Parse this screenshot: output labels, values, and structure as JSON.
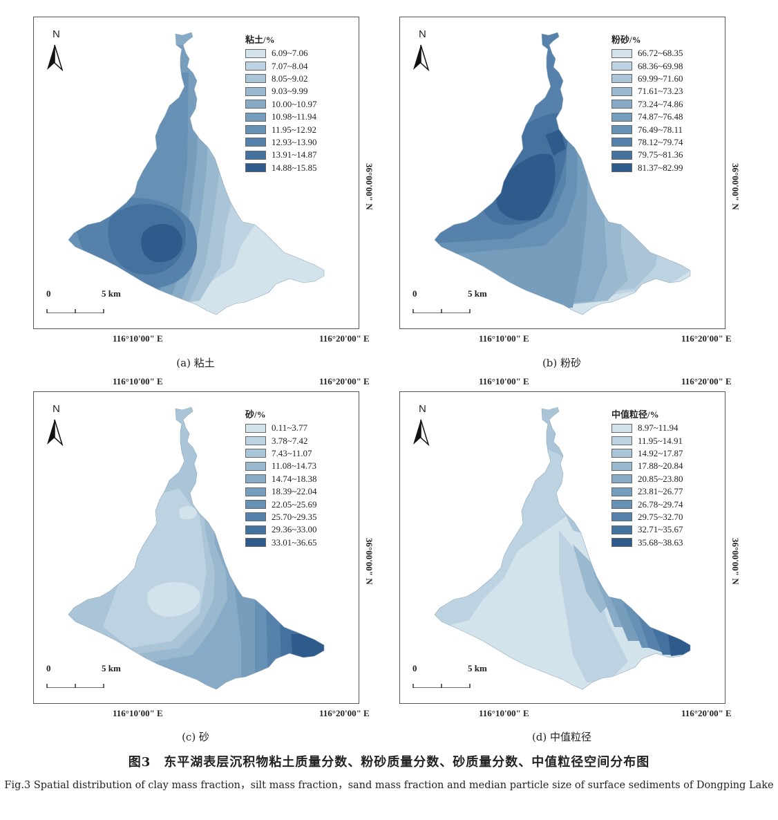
{
  "figure": {
    "title": "图3　东平湖表层沉积物粘土质量分数、粉砂质量分数、砂质量分数、中值粒径空间分布图",
    "subtitle": "Fig.3 Spatial distribution of clay mass fraction，silt mass fraction，sand mass fraction and median particle size of surface sediments of Dongping Lake"
  },
  "axes": {
    "lon1": "116°10'00\" E",
    "lon2": "116°20'00\" E",
    "lat": "36°00'00\" N"
  },
  "north_letter": "N",
  "scale": {
    "zero": "0",
    "five": "5 km"
  },
  "panels": [
    {
      "id": "a",
      "caption": "(a)  粘土",
      "legend_title": "粘土/%",
      "pattern": "clay",
      "classes": [
        "6.09~7.06",
        "7.07~8.04",
        "8.05~9.02",
        "9.03~9.99",
        "10.00~10.97",
        "10.98~11.94",
        "11.95~12.92",
        "12.93~13.90",
        "13.91~14.87",
        "14.88~15.85"
      ]
    },
    {
      "id": "b",
      "caption": "(b)  粉砂",
      "legend_title": "粉砂/%",
      "pattern": "silt",
      "classes": [
        "66.72~68.35",
        "68.36~69.98",
        "69.99~71.60",
        "71.61~73.23",
        "73.24~74.86",
        "74.87~76.48",
        "76.49~78.11",
        "78.12~79.74",
        "79.75~81.36",
        "81.37~82.99"
      ]
    },
    {
      "id": "c",
      "caption": "(c)  砂",
      "legend_title": "砂/%",
      "pattern": "sand",
      "classes": [
        "0.11~3.77",
        "3.78~7.42",
        "7.43~11.07",
        "11.08~14.73",
        "14.74~18.38",
        "18.39~22.04",
        "22.05~25.69",
        "25.70~29.35",
        "29.36~33.00",
        "33.01~36.65"
      ]
    },
    {
      "id": "d",
      "caption": "(d)  中值粒径",
      "legend_title": "中值粒径/%",
      "pattern": "median",
      "classes": [
        "8.97~11.94",
        "11.95~14.91",
        "14.92~17.87",
        "17.88~20.84",
        "20.85~23.80",
        "23.81~26.77",
        "26.78~29.74",
        "29.75~32.70",
        "32.71~35.67",
        "35.68~38.63"
      ]
    }
  ],
  "palette": [
    "#d3e3ec",
    "#bdd3e1",
    "#aac5d8",
    "#9ab9cf",
    "#87aac6",
    "#779dbd",
    "#6690b4",
    "#5581aa",
    "#44729f",
    "#2f5b8c"
  ]
}
